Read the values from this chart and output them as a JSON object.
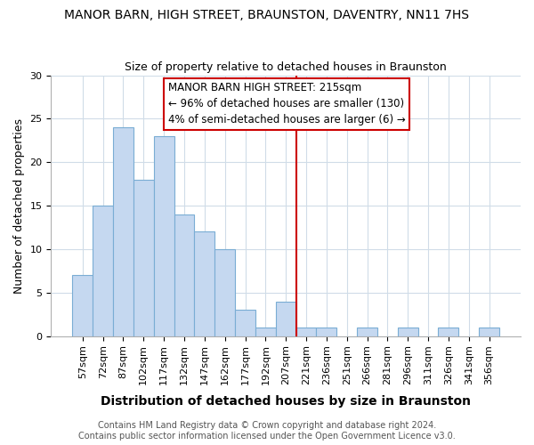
{
  "title": "MANOR BARN, HIGH STREET, BRAUNSTON, DAVENTRY, NN11 7HS",
  "subtitle": "Size of property relative to detached houses in Braunston",
  "xlabel": "Distribution of detached houses by size in Braunston",
  "ylabel": "Number of detached properties",
  "categories": [
    "57sqm",
    "72sqm",
    "87sqm",
    "102sqm",
    "117sqm",
    "132sqm",
    "147sqm",
    "162sqm",
    "177sqm",
    "192sqm",
    "207sqm",
    "221sqm",
    "236sqm",
    "251sqm",
    "266sqm",
    "281sqm",
    "296sqm",
    "311sqm",
    "326sqm",
    "341sqm",
    "356sqm"
  ],
  "values": [
    7,
    15,
    24,
    18,
    23,
    14,
    12,
    10,
    3,
    1,
    4,
    1,
    1,
    0,
    1,
    0,
    1,
    0,
    1,
    0,
    1
  ],
  "bar_color": "#c5d8f0",
  "bar_edge_color": "#7aadd4",
  "vline_x_index": 10.5,
  "vline_color": "#cc0000",
  "annotation_text": "MANOR BARN HIGH STREET: 215sqm\n← 96% of detached houses are smaller (130)\n4% of semi-detached houses are larger (6) →",
  "annotation_box_color": "#ffffff",
  "annotation_box_edge": "#cc0000",
  "ylim": [
    0,
    30
  ],
  "yticks": [
    0,
    5,
    10,
    15,
    20,
    25,
    30
  ],
  "footer_text": "Contains HM Land Registry data © Crown copyright and database right 2024.\nContains public sector information licensed under the Open Government Licence v3.0.",
  "bg_color": "#ffffff",
  "plot_bg_color": "#ffffff",
  "title_fontsize": 10,
  "subtitle_fontsize": 9,
  "xlabel_fontsize": 10,
  "ylabel_fontsize": 9,
  "tick_fontsize": 8,
  "footer_fontsize": 7,
  "annotation_fontsize": 8.5,
  "grid_color": "#d0dce8"
}
